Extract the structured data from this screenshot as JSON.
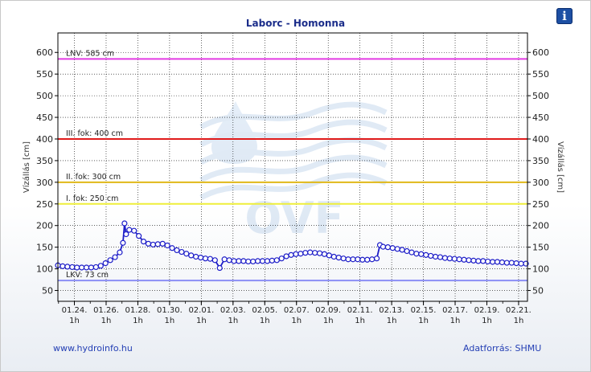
{
  "info_icon_glyph": "i",
  "footer": {
    "website": "www.hydroinfo.hu",
    "source": "Adatforrás: SHMU"
  },
  "watermark": "OVF",
  "chart_data": {
    "type": "line",
    "title": "Laborc - Homonna",
    "ylabel_left": "Vízállás [cm]",
    "ylabel_right": "Vízállás [cm]",
    "ylim": [
      25,
      645
    ],
    "yticks": [
      50,
      100,
      150,
      200,
      250,
      300,
      350,
      400,
      450,
      500,
      550,
      600
    ],
    "xlim": [
      0,
      29.6
    ],
    "x_unit": "days since 01.23 00h",
    "xticks": [
      {
        "x": 1.04,
        "date": "01.24.",
        "hour": "1h"
      },
      {
        "x": 3.04,
        "date": "01.26.",
        "hour": "1h"
      },
      {
        "x": 5.04,
        "date": "01.28.",
        "hour": "1h"
      },
      {
        "x": 7.04,
        "date": "01.30.",
        "hour": "1h"
      },
      {
        "x": 9.04,
        "date": "02.01.",
        "hour": "1h"
      },
      {
        "x": 11.04,
        "date": "02.03.",
        "hour": "1h"
      },
      {
        "x": 13.04,
        "date": "02.05.",
        "hour": "1h"
      },
      {
        "x": 15.04,
        "date": "02.07.",
        "hour": "1h"
      },
      {
        "x": 17.04,
        "date": "02.09.",
        "hour": "1h"
      },
      {
        "x": 19.04,
        "date": "02.11.",
        "hour": "1h"
      },
      {
        "x": 21.04,
        "date": "02.13.",
        "hour": "1h"
      },
      {
        "x": 23.04,
        "date": "02.15.",
        "hour": "1h"
      },
      {
        "x": 25.04,
        "date": "02.17.",
        "hour": "1h"
      },
      {
        "x": 27.04,
        "date": "02.19.",
        "hour": "1h"
      },
      {
        "x": 29.04,
        "date": "02.21.",
        "hour": "1h"
      }
    ],
    "thresholds": [
      {
        "label": "LNV: 585 cm",
        "value": 585,
        "color": "#e33be3"
      },
      {
        "label": "III. fok: 400 cm",
        "value": 400,
        "color": "#e01b1b"
      },
      {
        "label": "II. fok: 300 cm",
        "value": 300,
        "color": "#e0b818"
      },
      {
        "label": "I. fok: 250 cm",
        "value": 250,
        "color": "#eeee3a"
      },
      {
        "label": "LKV: 73 cm",
        "value": 73,
        "color": "#8a8ef5"
      }
    ],
    "series": [
      {
        "color": "#1c1cc8",
        "x": [
          0.0,
          0.3,
          0.6,
          0.9,
          1.2,
          1.5,
          1.8,
          2.1,
          2.4,
          2.7,
          3.0,
          3.3,
          3.6,
          3.9,
          4.1,
          4.2,
          4.3,
          4.5,
          4.8,
          5.1,
          5.4,
          5.7,
          6.0,
          6.3,
          6.6,
          6.9,
          7.2,
          7.5,
          7.8,
          8.1,
          8.4,
          8.7,
          9.0,
          9.3,
          9.6,
          9.9,
          10.2,
          10.5,
          10.8,
          11.1,
          11.4,
          11.7,
          12.0,
          12.3,
          12.6,
          12.9,
          13.2,
          13.5,
          13.8,
          14.1,
          14.4,
          14.7,
          15.0,
          15.3,
          15.6,
          15.9,
          16.2,
          16.5,
          16.8,
          17.1,
          17.4,
          17.7,
          18.0,
          18.3,
          18.6,
          18.9,
          19.2,
          19.5,
          19.8,
          20.1,
          20.3,
          20.5,
          20.8,
          21.1,
          21.4,
          21.7,
          22.0,
          22.3,
          22.6,
          22.9,
          23.2,
          23.5,
          23.8,
          24.1,
          24.4,
          24.7,
          25.0,
          25.3,
          25.6,
          25.9,
          26.2,
          26.5,
          26.8,
          27.1,
          27.4,
          27.7,
          28.0,
          28.3,
          28.6,
          28.9,
          29.2,
          29.5
        ],
        "values": [
          108,
          106,
          105,
          104,
          103,
          103,
          103,
          103,
          104,
          107,
          113,
          120,
          127,
          138,
          160,
          205,
          180,
          190,
          188,
          176,
          163,
          158,
          156,
          157,
          158,
          154,
          148,
          143,
          139,
          135,
          131,
          128,
          126,
          124,
          123,
          120,
          102,
          122,
          120,
          118,
          118,
          118,
          117,
          117,
          118,
          118,
          118,
          119,
          120,
          124,
          129,
          132,
          134,
          135,
          137,
          138,
          137,
          136,
          134,
          131,
          128,
          126,
          124,
          122,
          122,
          122,
          121,
          121,
          122,
          124,
          155,
          151,
          150,
          148,
          146,
          144,
          141,
          138,
          135,
          134,
          132,
          130,
          128,
          127,
          125,
          124,
          123,
          122,
          121,
          120,
          119,
          118,
          118,
          117,
          116,
          116,
          115,
          114,
          114,
          113,
          112,
          112
        ]
      }
    ]
  }
}
